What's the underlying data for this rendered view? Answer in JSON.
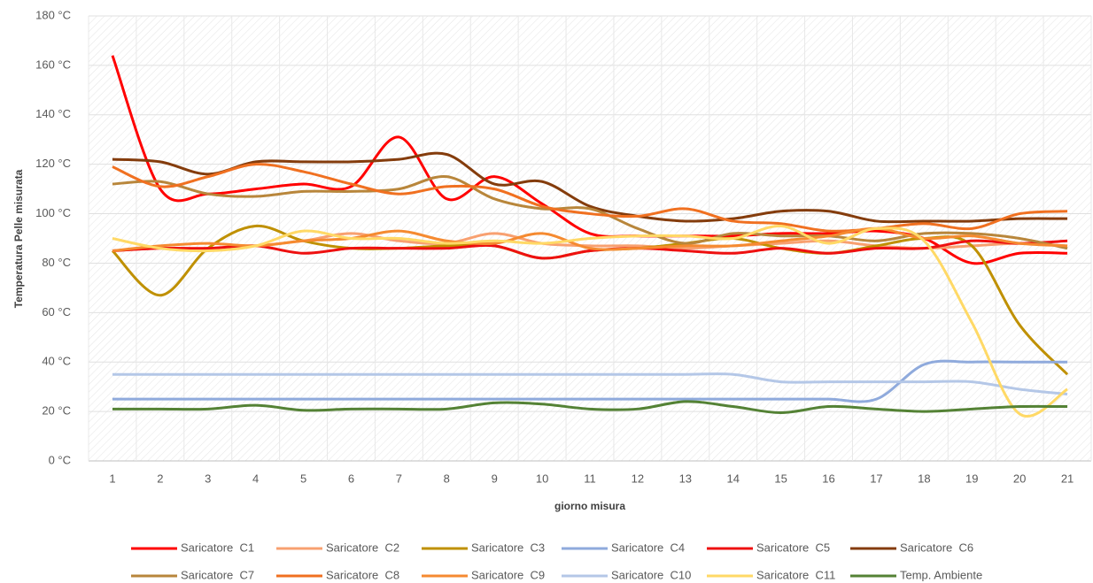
{
  "chart_data": {
    "type": "line",
    "x_label": "giorno misura",
    "y_label": "Temperatura Pelle misurata",
    "categories": [
      "1",
      "2",
      "3",
      "4",
      "5",
      "6",
      "7",
      "8",
      "9",
      "10",
      "11",
      "12",
      "13",
      "14",
      "15",
      "16",
      "17",
      "18",
      "19",
      "20",
      "21"
    ],
    "ylim": [
      0,
      180
    ],
    "yticks": [
      {
        "value": 0,
        "label": "0 °C"
      },
      {
        "value": 20,
        "label": "20 °C"
      },
      {
        "value": 40,
        "label": "40 °C"
      },
      {
        "value": 60,
        "label": "60 °C"
      },
      {
        "value": 80,
        "label": "80 °C"
      },
      {
        "value": 100,
        "label": "100 °C"
      },
      {
        "value": 120,
        "label": "120 °C"
      },
      {
        "value": 140,
        "label": "140 °C"
      },
      {
        "value": 160,
        "label": "160 °C"
      },
      {
        "value": 180,
        "label": "180 °C"
      }
    ],
    "grid": true,
    "legend": "bottom",
    "series": [
      {
        "name": "Saricatore  C1",
        "color": "#ff0000",
        "values": [
          164,
          110,
          108,
          110,
          112,
          111,
          131,
          106,
          115,
          104,
          92,
          91,
          91,
          91,
          92,
          92,
          93,
          90,
          80,
          84,
          84
        ]
      },
      {
        "name": "Saricatore  C2",
        "color": "#f8a070",
        "values": [
          85,
          86,
          86,
          87,
          89,
          92,
          89,
          88,
          92,
          88,
          87,
          87,
          86,
          87,
          88,
          89,
          87,
          86,
          87,
          88,
          87
        ]
      },
      {
        "name": "Saricatore  C3",
        "color": "#bf9000",
        "values": [
          85,
          67,
          86,
          95,
          89,
          86,
          86,
          87,
          87,
          82,
          85,
          86,
          88,
          90,
          86,
          84,
          87,
          90,
          87,
          55,
          35
        ]
      },
      {
        "name": "Saricatore  C4",
        "color": "#8faadc",
        "values": [
          25,
          25,
          25,
          25,
          25,
          25,
          25,
          25,
          25,
          25,
          25,
          25,
          25,
          25,
          25,
          25,
          25,
          39,
          40,
          40,
          40
        ]
      },
      {
        "name": "Saricatore  C5",
        "color": "#ee1010",
        "values": [
          85,
          86,
          86,
          87,
          84,
          86,
          86,
          86,
          87,
          82,
          85,
          86,
          85,
          84,
          86,
          84,
          86,
          86,
          89,
          88,
          89
        ]
      },
      {
        "name": "Saricatore  C6",
        "color": "#843c0c",
        "values": [
          122,
          121,
          116,
          121,
          121,
          121,
          122,
          124,
          112,
          113,
          103,
          99,
          97,
          98,
          101,
          101,
          97,
          97,
          97,
          98,
          98
        ]
      },
      {
        "name": "Saricatore  C7",
        "color": "#b8863b",
        "values": [
          112,
          113,
          108,
          107,
          109,
          109,
          110,
          115,
          106,
          102,
          102,
          94,
          88,
          92,
          91,
          91,
          89,
          92,
          92,
          90,
          86
        ]
      },
      {
        "name": "Saricatore  C8",
        "color": "#f07020",
        "values": [
          119,
          111,
          115,
          120,
          117,
          112,
          108,
          111,
          110,
          103,
          100,
          99,
          102,
          97,
          96,
          93,
          94,
          96,
          94,
          100,
          101
        ]
      },
      {
        "name": "Saricatore  C9",
        "color": "#f58a30",
        "values": [
          85,
          87,
          88,
          87,
          89,
          90,
          93,
          89,
          88,
          92,
          86,
          86,
          87,
          87,
          89,
          91,
          94,
          90,
          91,
          88,
          87
        ]
      },
      {
        "name": "Saricatore  C10",
        "color": "#b4c7e7",
        "values": [
          35,
          35,
          35,
          35,
          35,
          35,
          35,
          35,
          35,
          35,
          35,
          35,
          35,
          35,
          32,
          32,
          32,
          32,
          32,
          29,
          27
        ]
      },
      {
        "name": "Saricatore  C11",
        "color": "#ffd966",
        "values": [
          90,
          86,
          85,
          87,
          93,
          90,
          90,
          88,
          89,
          88,
          90,
          91,
          91,
          90,
          95,
          88,
          94,
          89,
          56,
          19,
          29
        ]
      },
      {
        "name": "Temp. Ambiente",
        "color": "#548235",
        "values": [
          21,
          21,
          21,
          22.5,
          20.5,
          21,
          21,
          21,
          23.5,
          23,
          21,
          21,
          24,
          22,
          19.5,
          22,
          21,
          20,
          21,
          22,
          22
        ]
      }
    ]
  }
}
